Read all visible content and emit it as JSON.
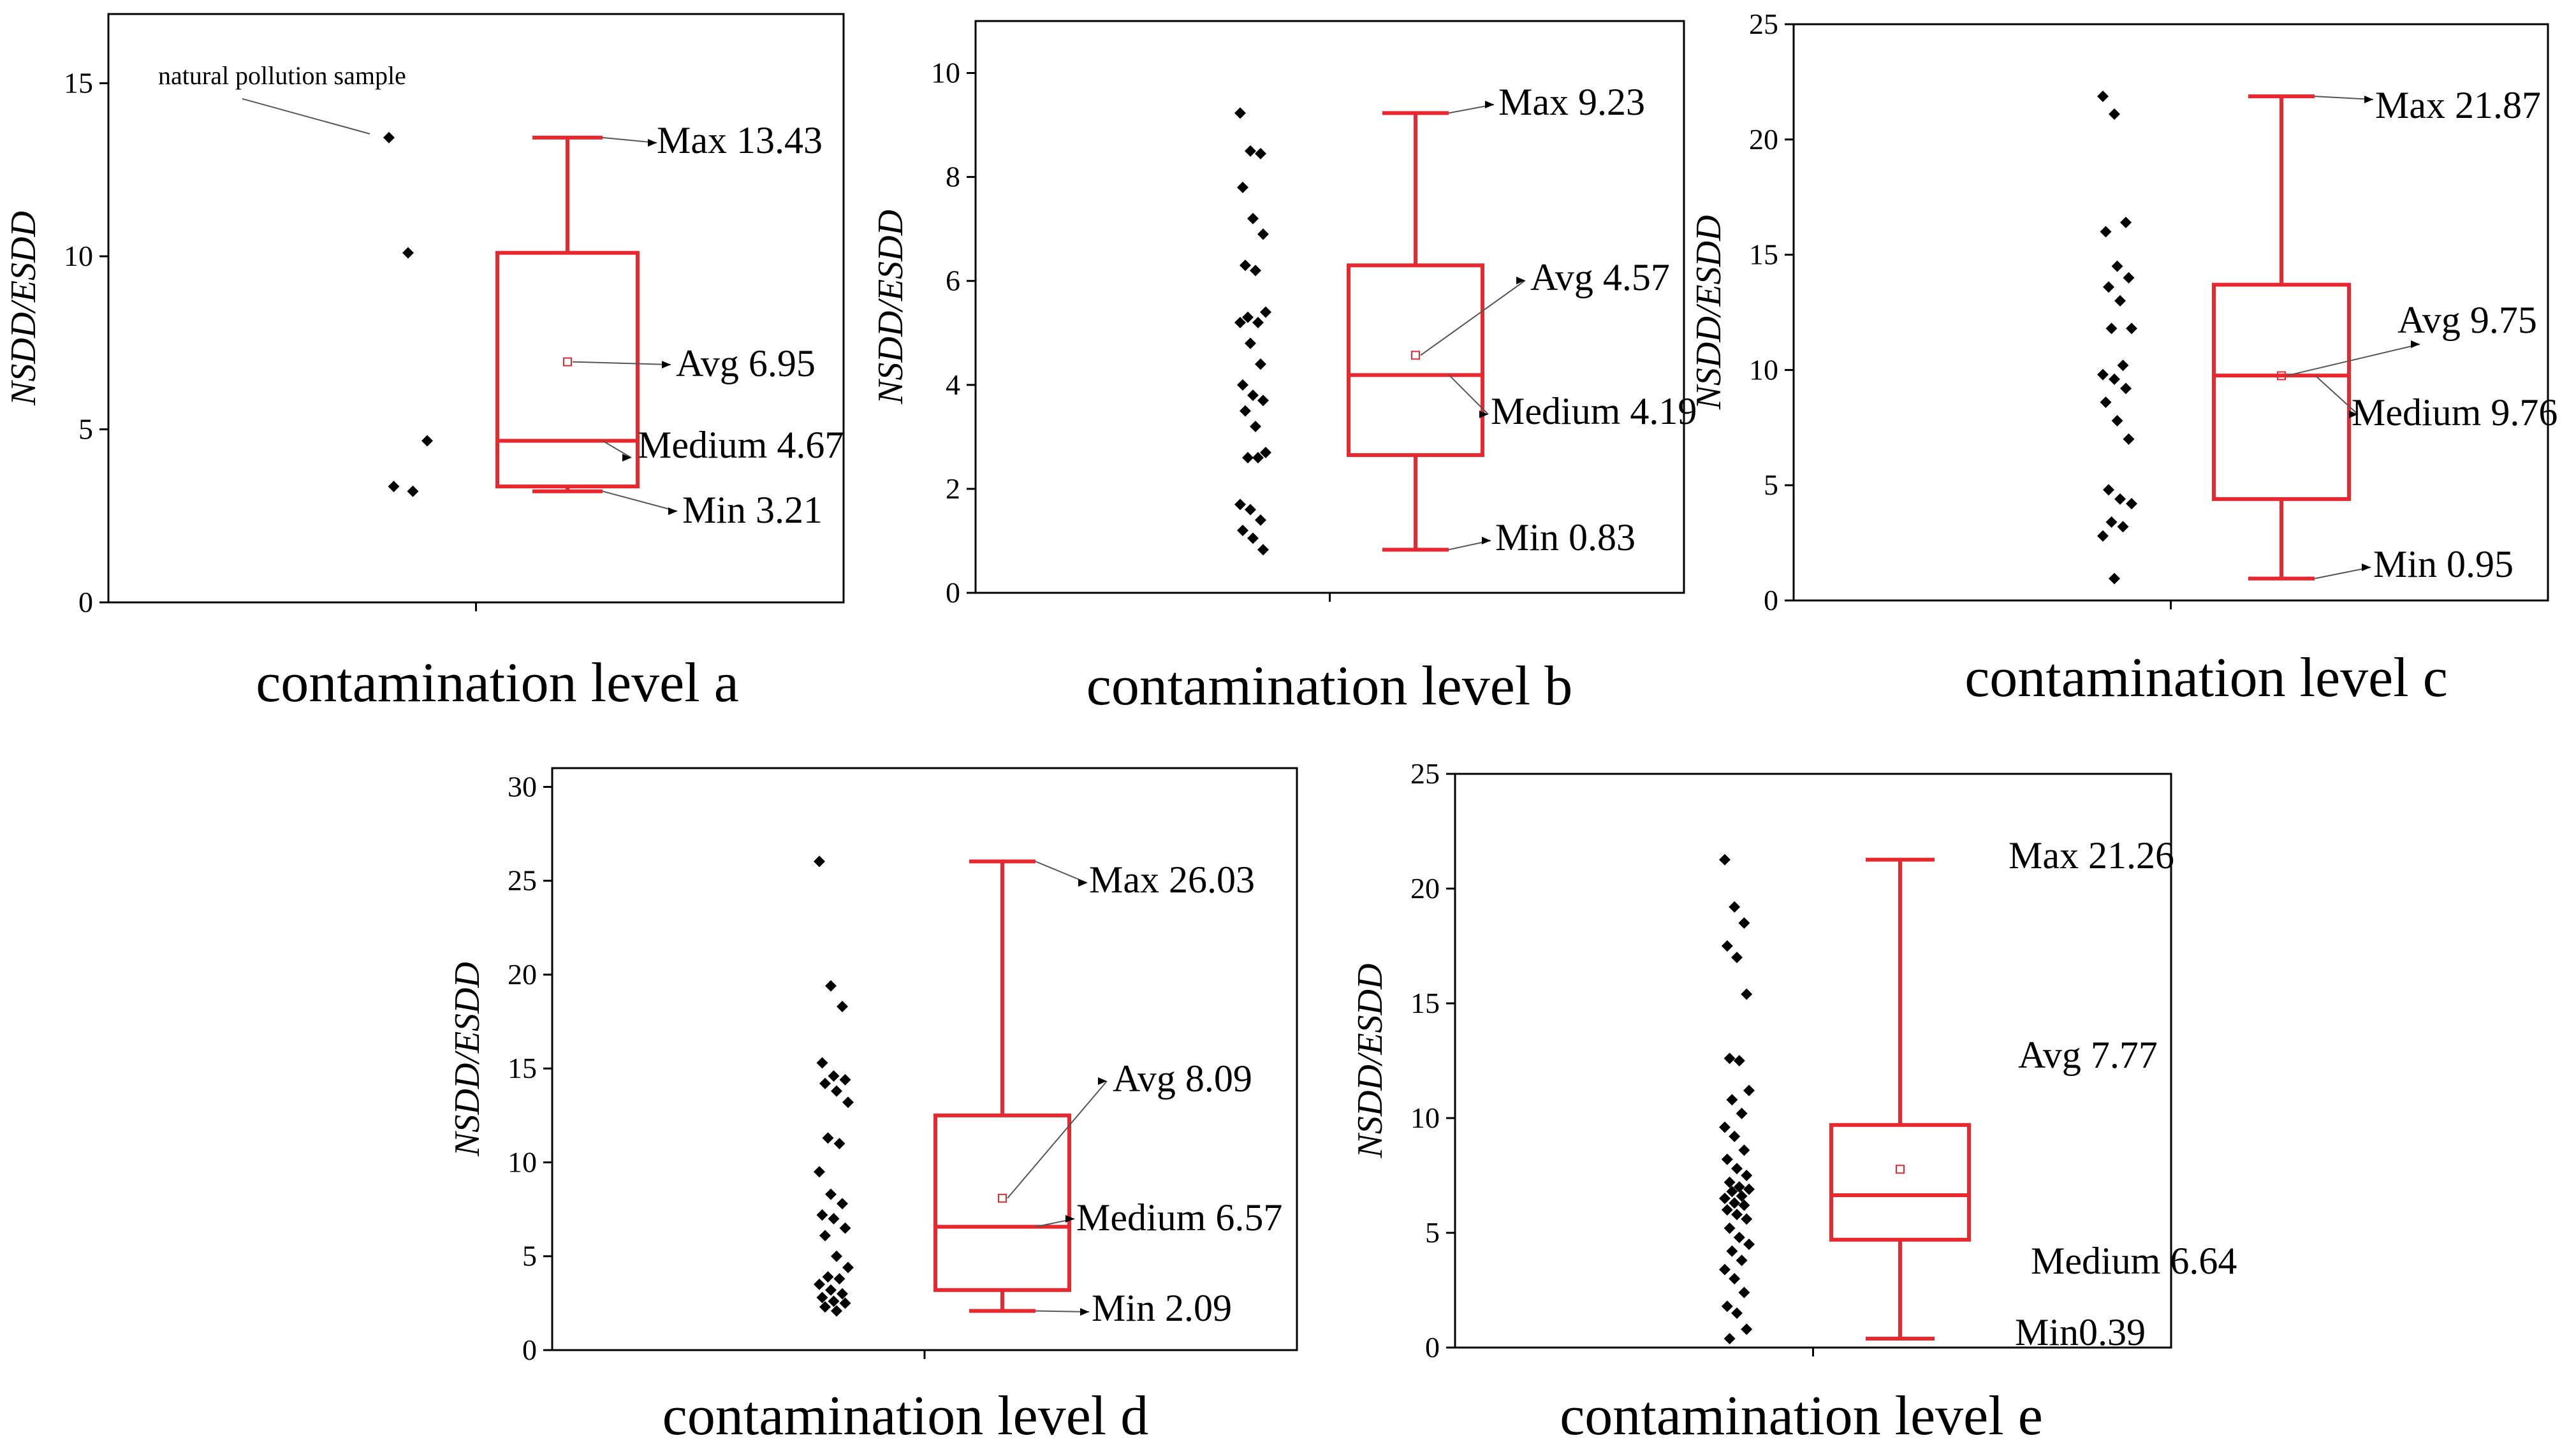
{
  "colors": {
    "box": "#e8282e",
    "points": "#000000",
    "axis": "#000000"
  },
  "chart_data": [
    {
      "type": "box",
      "id": "a",
      "xlabel": "contamination  level a",
      "ylabel": "NSDD/ESDD",
      "ylim": [
        0,
        17
      ],
      "yticks": [
        0,
        5,
        10,
        15
      ],
      "stats": {
        "max": 13.43,
        "q3": 10.1,
        "median": 4.67,
        "q1": 3.35,
        "min": 3.21,
        "avg": 6.95
      },
      "points": [
        13.43,
        10.1,
        4.67,
        3.35,
        3.21
      ],
      "annotations": {
        "max": "Max 13.43",
        "avg": "Avg 6.95",
        "median": "Medium 4.67",
        "min": "Min 3.21",
        "note": "natural pollution sample"
      }
    },
    {
      "type": "box",
      "id": "b",
      "xlabel": "contamination  level b",
      "ylabel": "NSDD/ESDD",
      "ylim": [
        0,
        11
      ],
      "yticks": [
        0,
        2,
        4,
        6,
        8,
        10
      ],
      "stats": {
        "max": 9.23,
        "q3": 6.3,
        "median": 4.19,
        "q1": 2.65,
        "min": 0.83,
        "avg": 4.57
      },
      "points": [
        9.23,
        8.5,
        8.45,
        7.8,
        7.2,
        6.9,
        6.3,
        6.2,
        5.4,
        5.3,
        5.2,
        5.2,
        4.8,
        4.4,
        4.0,
        3.8,
        3.7,
        3.5,
        3.2,
        2.7,
        2.6,
        2.6,
        1.7,
        1.6,
        1.4,
        1.2,
        1.05,
        0.83
      ],
      "annotations": {
        "max": "Max 9.23",
        "avg": "Avg 4.57",
        "median": "Medium 4.19",
        "min": "Min 0.83"
      }
    },
    {
      "type": "box",
      "id": "c",
      "xlabel": "contamination  level c",
      "ylabel": "NSDD/ESDD",
      "ylim": [
        0,
        25
      ],
      "yticks": [
        0,
        5,
        10,
        15,
        20,
        25
      ],
      "stats": {
        "max": 21.87,
        "q3": 13.7,
        "median": 9.76,
        "q1": 4.4,
        "min": 0.95,
        "avg": 9.75
      },
      "points": [
        21.87,
        21.1,
        16.4,
        16.0,
        14.5,
        14.0,
        13.6,
        13.0,
        11.8,
        11.8,
        10.2,
        9.8,
        9.6,
        9.2,
        8.6,
        7.8,
        7.0,
        4.8,
        4.4,
        4.2,
        3.4,
        3.2,
        2.8,
        0.95
      ],
      "annotations": {
        "max": "Max 21.87",
        "avg": "Avg 9.75",
        "median": "Medium 9.76",
        "min": "Min 0.95"
      }
    },
    {
      "type": "box",
      "id": "d",
      "xlabel": "contamination  level d",
      "ylabel": "NSDD/ESDD",
      "ylim": [
        0,
        31
      ],
      "yticks": [
        0,
        5,
        10,
        15,
        20,
        25,
        30
      ],
      "stats": {
        "max": 26.03,
        "q3": 12.5,
        "median": 6.57,
        "q1": 3.2,
        "min": 2.09,
        "avg": 8.09
      },
      "points": [
        26.03,
        19.4,
        18.3,
        15.3,
        14.6,
        14.4,
        14.2,
        13.8,
        13.2,
        11.3,
        11.0,
        9.5,
        8.3,
        7.8,
        7.2,
        7.0,
        6.5,
        6.1,
        5.0,
        4.4,
        3.9,
        3.8,
        3.5,
        3.2,
        3.0,
        2.8,
        2.6,
        2.5,
        2.3,
        2.09
      ],
      "annotations": {
        "max": "Max 26.03",
        "avg": "Avg 8.09",
        "median": "Medium 6.57",
        "min": "Min 2.09"
      }
    },
    {
      "type": "box",
      "id": "e",
      "xlabel": "contamination  level e",
      "ylabel": "NSDD/ESDD",
      "ylim": [
        0,
        25
      ],
      "yticks": [
        0,
        5,
        10,
        15,
        20,
        25
      ],
      "stats": {
        "max": 21.26,
        "q3": 9.7,
        "median": 6.64,
        "q1": 4.7,
        "min": 0.39,
        "avg": 7.77
      },
      "points": [
        21.26,
        19.2,
        18.5,
        17.5,
        17.0,
        15.4,
        12.6,
        12.5,
        11.2,
        10.8,
        10.2,
        9.6,
        9.2,
        8.6,
        8.2,
        7.8,
        7.5,
        7.2,
        7.0,
        6.9,
        6.8,
        6.6,
        6.5,
        6.3,
        6.2,
        6.0,
        5.8,
        5.6,
        5.2,
        4.8,
        4.5,
        4.2,
        3.8,
        3.4,
        3.0,
        2.4,
        1.8,
        1.5,
        0.8,
        0.39
      ],
      "annotations": {
        "max": "Max 21.26",
        "avg": "Avg 7.77",
        "median": "Medium 6.64",
        "min": "Min0.39"
      }
    }
  ]
}
